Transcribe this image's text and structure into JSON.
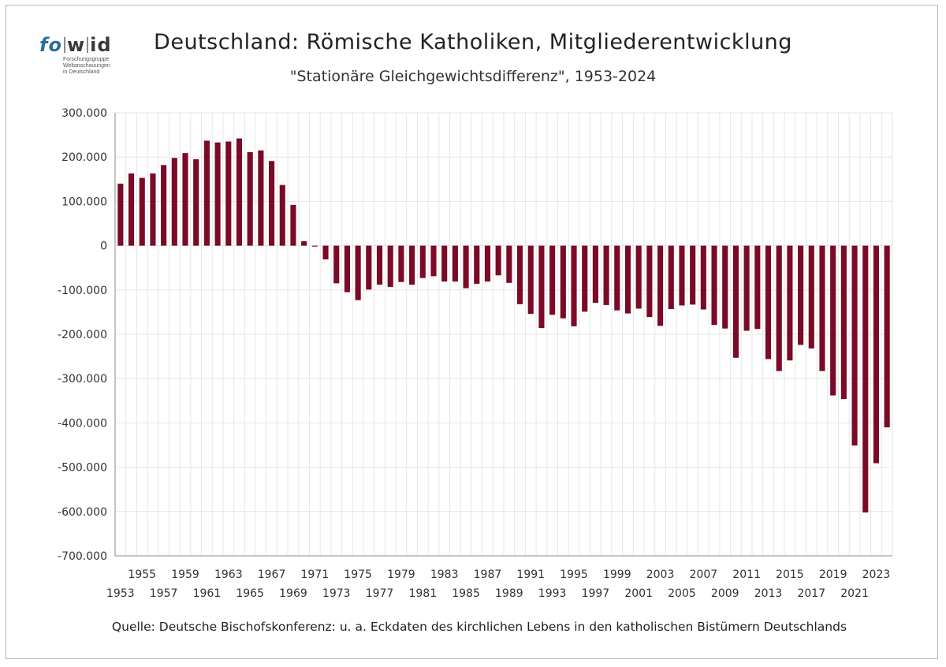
{
  "logo": {
    "brand_fo": "fo",
    "brand_w": "w",
    "brand_id": "id",
    "sub_lines": [
      "Forschungsgruppe",
      "Weltanschauungen",
      "in Deutschland"
    ]
  },
  "title": "Deutschland: Römische Katholiken, Mitgliederentwicklung",
  "subtitle": "\"Stationäre Gleichgewichtsdifferenz\", 1953-2024",
  "source": "Quelle: Deutsche Bischofskonferenz: u. a.  Eckdaten des kirchlichen Lebens in den katholischen Bistümern Deutschlands",
  "colors": {
    "bar": "#7a0a25",
    "grid": "#e6e6e6",
    "axis": "#888888",
    "text": "#333333"
  },
  "chart_data": {
    "type": "bar",
    "title": "Deutschland: Römische Katholiken, Mitgliederentwicklung",
    "subtitle": "\"Stationäre Gleichgewichtsdifferenz\", 1953-2024",
    "xlabel": "",
    "ylabel": "",
    "ylim": [
      -700000,
      300000
    ],
    "yticks": [
      300000,
      200000,
      100000,
      0,
      -100000,
      -200000,
      -300000,
      -400000,
      -500000,
      -600000,
      -700000
    ],
    "ytick_labels": [
      "300.000",
      "200.000",
      "100.000",
      "0",
      "-100.000",
      "-200.000",
      "-300.000",
      "-400.000",
      "-500.000",
      "-600.000",
      "-700.000"
    ],
    "grid": true,
    "legend": "none",
    "categories": [
      1953,
      1954,
      1955,
      1956,
      1957,
      1958,
      1959,
      1960,
      1961,
      1962,
      1963,
      1964,
      1965,
      1966,
      1967,
      1968,
      1969,
      1970,
      1971,
      1972,
      1973,
      1974,
      1975,
      1976,
      1977,
      1978,
      1979,
      1980,
      1981,
      1982,
      1983,
      1984,
      1985,
      1986,
      1987,
      1988,
      1989,
      1990,
      1991,
      1992,
      1993,
      1994,
      1995,
      1996,
      1997,
      1998,
      1999,
      2000,
      2001,
      2002,
      2003,
      2004,
      2005,
      2006,
      2007,
      2008,
      2009,
      2010,
      2011,
      2012,
      2013,
      2014,
      2015,
      2016,
      2017,
      2018,
      2019,
      2020,
      2021,
      2022,
      2023,
      2024
    ],
    "values": [
      140000,
      163000,
      153000,
      163000,
      182000,
      198000,
      209000,
      195000,
      237000,
      233000,
      235000,
      242000,
      211000,
      215000,
      191000,
      137000,
      92000,
      10000,
      -2000,
      -31000,
      -85000,
      -105000,
      -123000,
      -99000,
      -88000,
      -93000,
      -82000,
      -88000,
      -73000,
      -69000,
      -81000,
      -81000,
      -96000,
      -86000,
      -81000,
      -67000,
      -84000,
      -132000,
      -154000,
      -186000,
      -156000,
      -164000,
      -182000,
      -149000,
      -129000,
      -134000,
      -146000,
      -153000,
      -142000,
      -161000,
      -181000,
      -143000,
      -135000,
      -133000,
      -144000,
      -179000,
      -187000,
      -253000,
      -192000,
      -188000,
      -256000,
      -283000,
      -259000,
      -224000,
      -232000,
      -283000,
      -338000,
      -346000,
      -451000,
      -602000,
      -491000,
      -410000
    ],
    "odd_year_labels": [
      "1955",
      "1959",
      "1963",
      "1967",
      "1971",
      "1975",
      "1979",
      "1983",
      "1987",
      "1991",
      "1995",
      "1999",
      "2003",
      "2007",
      "2011",
      "2015",
      "2019",
      "2023"
    ],
    "odd_year_labels_low": [
      "1953",
      "1957",
      "1961",
      "1965",
      "1969",
      "1973",
      "1977",
      "1981",
      "1985",
      "1989",
      "1993",
      "1997",
      "2001",
      "2005",
      "2009",
      "2013",
      "2017",
      "2021"
    ]
  }
}
